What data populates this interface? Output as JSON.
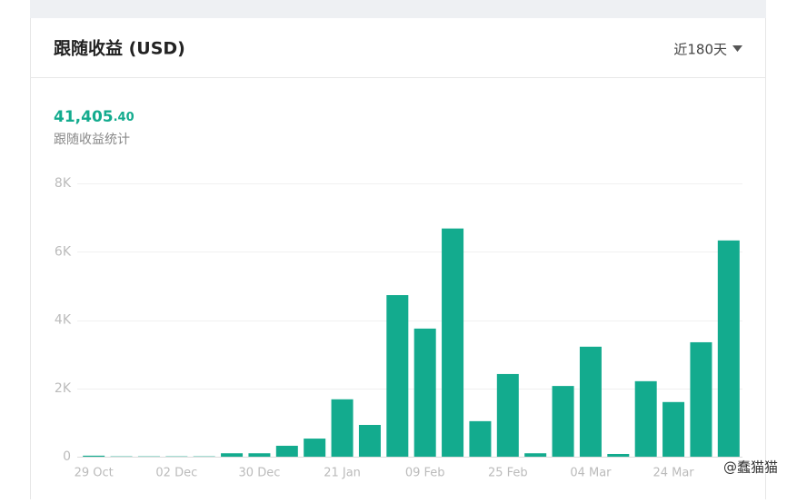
{
  "header": {
    "title": "跟随收益 (USD)",
    "period": "近180天"
  },
  "summary": {
    "value_main": "41,405",
    "value_decimal": ".40",
    "label": "跟随收益统计"
  },
  "watermark": "@蠢猫猫",
  "chart_data": {
    "type": "bar",
    "categories": [
      "29 Oct",
      null,
      null,
      "02 Dec",
      null,
      null,
      "30 Dec",
      null,
      null,
      "21 Jan",
      null,
      null,
      "09 Feb",
      null,
      null,
      "25 Feb",
      null,
      null,
      "04 Mar",
      null,
      null,
      "24 Mar",
      null,
      null
    ],
    "values": [
      30,
      10,
      10,
      10,
      10,
      100,
      100,
      320,
      530,
      1680,
      930,
      4730,
      3750,
      6680,
      1040,
      2420,
      100,
      2070,
      3220,
      80,
      2210,
      1600,
      3350,
      6330
    ],
    "color": "#13ab8e",
    "ylim": [
      0,
      8000
    ],
    "yticks": [
      0,
      {
        "value": 2000,
        "label": "2K"
      },
      {
        "value": 4000,
        "label": "4K"
      },
      {
        "value": 6000,
        "label": "6K"
      },
      {
        "value": 8000,
        "label": "8K"
      }
    ],
    "grid": true
  }
}
